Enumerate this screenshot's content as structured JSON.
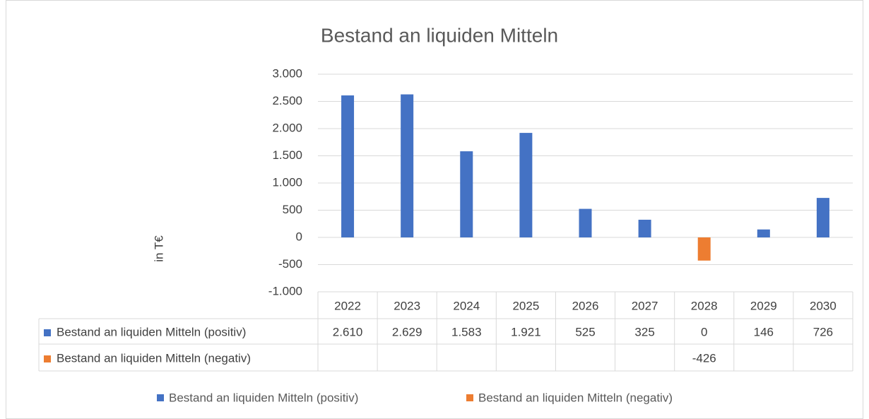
{
  "chart_data": {
    "type": "bar",
    "title": "Bestand an liquiden Mitteln",
    "y_label": "in T€",
    "categories": [
      "2022",
      "2023",
      "2024",
      "2025",
      "2026",
      "2027",
      "2028",
      "2029",
      "2030"
    ],
    "series": [
      {
        "name": "Bestand an liquiden Mitteln (positiv)",
        "color": "#4472c4",
        "values": [
          2610,
          2629,
          1583,
          1921,
          525,
          325,
          0,
          146,
          726
        ],
        "value_labels": [
          "2.610",
          "2.629",
          "1.583",
          "1.921",
          "525",
          "325",
          "0",
          "146",
          "726"
        ]
      },
      {
        "name": "Bestand an liquiden Mitteln (negativ)",
        "color": "#ed7d31",
        "values": [
          null,
          null,
          null,
          null,
          null,
          null,
          -426,
          null,
          null
        ]
      }
    ],
    "ylim": [
      -1000,
      3000
    ],
    "yticks": [
      {
        "value": 3000,
        "label": "3.000"
      },
      {
        "value": 2500,
        "label": "2.500"
      },
      {
        "value": 2000,
        "label": "2.000"
      },
      {
        "value": 1500,
        "label": "1.500"
      },
      {
        "value": 1000,
        "label": "1.000"
      },
      500,
      0,
      -500,
      {
        "value": -1000,
        "label": "-1.000"
      }
    ],
    "grid": true,
    "legend": "bottom"
  }
}
